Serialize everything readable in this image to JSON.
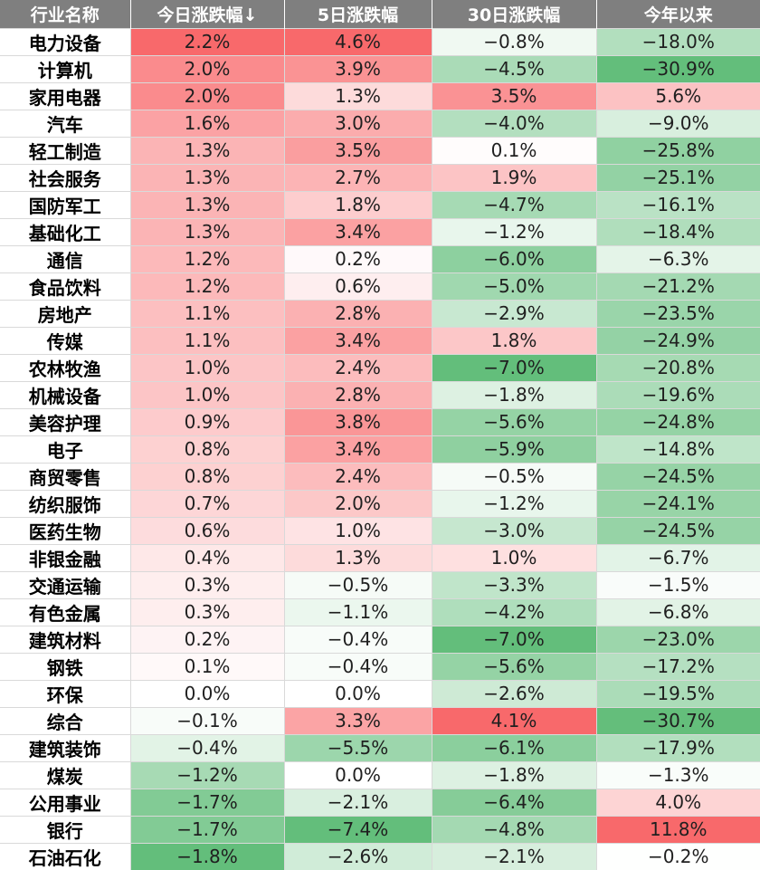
{
  "chart_data": {
    "type": "table",
    "columns": [
      "行业名称",
      "今日涨跌幅↓",
      "5日涨跌幅",
      "30日涨跌幅",
      "今年以来"
    ],
    "rows": [
      [
        "电力设备",
        "2.2%",
        "4.6%",
        "−0.8%",
        "−18.0%"
      ],
      [
        "计算机",
        "2.0%",
        "3.9%",
        "−4.5%",
        "−30.9%"
      ],
      [
        "家用电器",
        "2.0%",
        "1.3%",
        "3.5%",
        "5.6%"
      ],
      [
        "汽车",
        "1.6%",
        "3.0%",
        "−4.0%",
        "−9.0%"
      ],
      [
        "轻工制造",
        "1.3%",
        "3.5%",
        "0.1%",
        "−25.8%"
      ],
      [
        "社会服务",
        "1.3%",
        "2.7%",
        "1.9%",
        "−25.1%"
      ],
      [
        "国防军工",
        "1.3%",
        "1.8%",
        "−4.7%",
        "−16.1%"
      ],
      [
        "基础化工",
        "1.3%",
        "3.4%",
        "−1.2%",
        "−18.4%"
      ],
      [
        "通信",
        "1.2%",
        "0.2%",
        "−6.0%",
        "−6.3%"
      ],
      [
        "食品饮料",
        "1.2%",
        "0.6%",
        "−5.0%",
        "−21.2%"
      ],
      [
        "房地产",
        "1.1%",
        "2.8%",
        "−2.9%",
        "−23.5%"
      ],
      [
        "传媒",
        "1.1%",
        "3.4%",
        "1.8%",
        "−24.9%"
      ],
      [
        "农林牧渔",
        "1.0%",
        "2.4%",
        "−7.0%",
        "−20.8%"
      ],
      [
        "机械设备",
        "1.0%",
        "2.8%",
        "−1.8%",
        "−19.6%"
      ],
      [
        "美容护理",
        "0.9%",
        "3.8%",
        "−5.6%",
        "−24.8%"
      ],
      [
        "电子",
        "0.8%",
        "3.4%",
        "−5.9%",
        "−14.8%"
      ],
      [
        "商贸零售",
        "0.8%",
        "2.4%",
        "−0.5%",
        "−24.5%"
      ],
      [
        "纺织服饰",
        "0.7%",
        "2.0%",
        "−1.2%",
        "−24.1%"
      ],
      [
        "医药生物",
        "0.6%",
        "1.0%",
        "−3.0%",
        "−24.5%"
      ],
      [
        "非银金融",
        "0.4%",
        "1.3%",
        "1.0%",
        "−6.7%"
      ],
      [
        "交通运输",
        "0.3%",
        "−0.5%",
        "−3.3%",
        "−1.5%"
      ],
      [
        "有色金属",
        "0.3%",
        "−1.1%",
        "−4.2%",
        "−6.8%"
      ],
      [
        "建筑材料",
        "0.2%",
        "−0.4%",
        "−7.0%",
        "−23.0%"
      ],
      [
        "钢铁",
        "0.1%",
        "−0.4%",
        "−5.6%",
        "−17.2%"
      ],
      [
        "环保",
        "0.0%",
        "0.0%",
        "−2.6%",
        "−19.5%"
      ],
      [
        "综合",
        "−0.1%",
        "3.3%",
        "4.1%",
        "−30.7%"
      ],
      [
        "建筑装饰",
        "−0.4%",
        "−5.5%",
        "−6.1%",
        "−17.9%"
      ],
      [
        "煤炭",
        "−1.2%",
        "0.0%",
        "−1.8%",
        "−1.3%"
      ],
      [
        "公用事业",
        "−1.7%",
        "−2.1%",
        "−6.4%",
        "4.0%"
      ],
      [
        "银行",
        "−1.7%",
        "−7.4%",
        "−4.8%",
        "11.8%"
      ],
      [
        "石油石化",
        "−1.8%",
        "−2.6%",
        "−2.1%",
        "−0.2%"
      ]
    ]
  },
  "colors": {
    "header_bg": "#7f7f7f",
    "header_text": "#ffffff",
    "positive": "#f8696b",
    "negative": "#63be7b",
    "neutral": "#ffffff"
  }
}
